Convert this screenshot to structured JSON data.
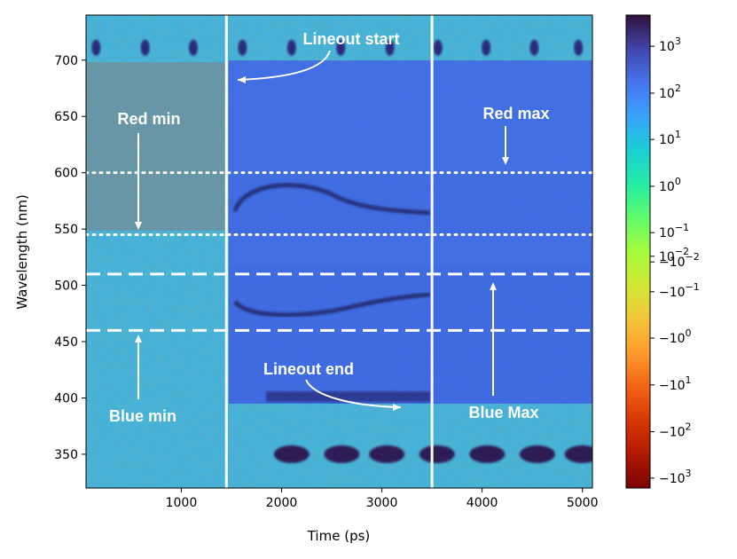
{
  "chart_data": {
    "type": "heatmap",
    "title": "",
    "xlabel": "Time (ps)",
    "ylabel": "Wavelength (nm)",
    "xlim": [
      50,
      5100
    ],
    "ylim": [
      320,
      740
    ],
    "x_ticks": [
      1000,
      2000,
      3000,
      4000,
      5000
    ],
    "y_ticks": [
      350,
      400,
      450,
      500,
      550,
      600,
      650,
      700
    ],
    "colorbar": {
      "scale": "symlog",
      "tick_labels": [
        "10^3",
        "10^2",
        "10^1",
        "10^0",
        "10^-1",
        "10^-2",
        "-10^-2",
        "-10^-1",
        "-10^0",
        "-10^1",
        "-10^2",
        "-10^3"
      ],
      "colormap_stops": [
        "#30123b",
        "#4145ab",
        "#4675ed",
        "#39a2fc",
        "#1bcfd4",
        "#24eca6",
        "#61fc6c",
        "#a4fc3b",
        "#d1e834",
        "#f3c63a",
        "#fe9b2d",
        "#f36315",
        "#d93806",
        "#b11901",
        "#7a0402"
      ]
    },
    "vertical_lines_time": [
      1450,
      3500
    ],
    "red_min_nm": 545,
    "red_max_nm": 600,
    "blue_min_nm": 460,
    "blue_max_nm": 510,
    "annotations": {
      "lineout_start": "Lineout start",
      "lineout_end": "Lineout end",
      "red_min": "Red min",
      "red_max": "Red max",
      "blue_min": "Blue min",
      "blue_max": "Blue Max"
    }
  },
  "colors": {
    "background_noise": "#3fb3e0",
    "signal_region": "#3f6ee6",
    "dark_feature": "#2a2f7a",
    "annotation_text": "#ffffff"
  }
}
